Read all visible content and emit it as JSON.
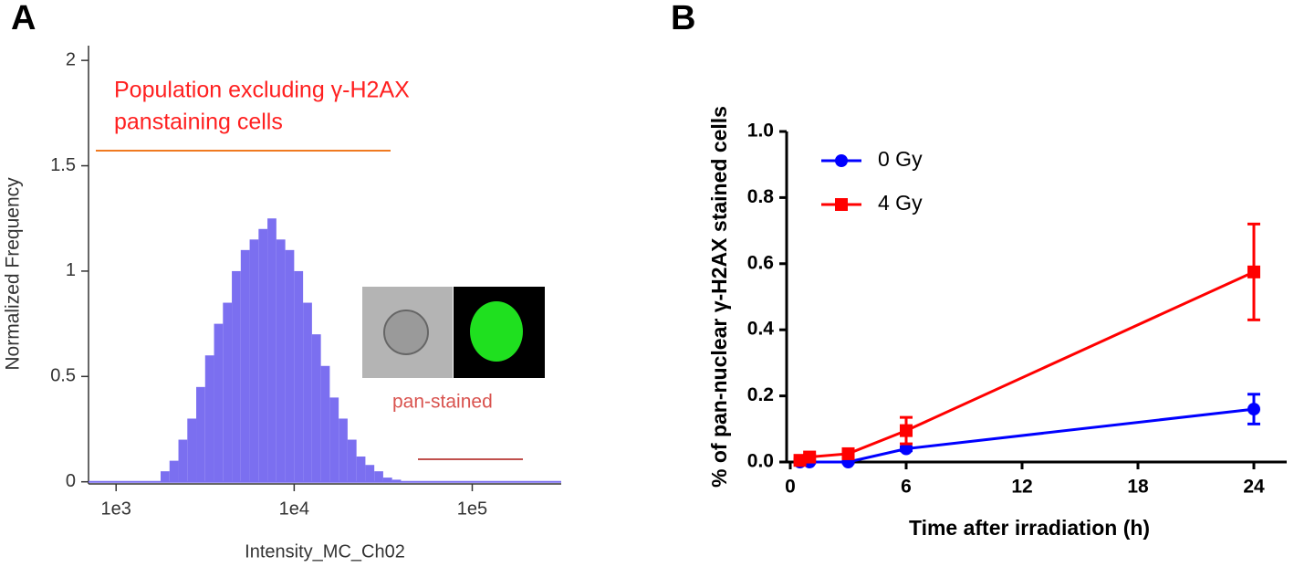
{
  "chart_data": [
    {
      "type": "histogram",
      "panel": "A",
      "x_label": "Intensity_MC_Ch02",
      "y_label": "Normalized Frequency",
      "annotations": [
        "Population excluding γ-H2AX",
        "panstaining cells",
        "pan-stained"
      ],
      "bins": [
        1778,
        1995,
        2239,
        2512,
        2818,
        3162,
        3548,
        3981,
        4467,
        5012,
        5623,
        6310,
        7079,
        7943,
        8913,
        10000,
        11220,
        12589,
        14125,
        15849,
        17783,
        19953,
        22387,
        25119,
        28184,
        31623,
        35481,
        39811
      ],
      "values": [
        0.05,
        0.1,
        0.2,
        0.3,
        0.45,
        0.6,
        0.75,
        0.85,
        1.0,
        1.1,
        1.15,
        1.2,
        1.25,
        1.15,
        1.1,
        1.0,
        0.85,
        0.7,
        0.55,
        0.4,
        0.3,
        0.2,
        0.12,
        0.08,
        0.05,
        0.02,
        0.01
      ],
      "color": "#7b6ff0",
      "log_x": true,
      "xlim": [
        700,
        316000
      ],
      "xticks": [
        {
          "value": 1000,
          "label": "1e3"
        },
        {
          "value": 10000,
          "label": "1e4"
        },
        {
          "value": 100000,
          "label": "1e5"
        }
      ],
      "ylim": [
        -0.01,
        2.07
      ],
      "yticks": [
        0,
        0.5,
        1,
        1.5,
        2
      ]
    },
    {
      "type": "line",
      "panel": "B",
      "x_label": "Time after irradiation (h)",
      "y_label": "% of pan-nuclear γ-H2AX stained cells",
      "x": [
        0.5,
        1,
        3,
        6,
        24
      ],
      "series": [
        {
          "name": "0 Gy",
          "color": "#0000ff",
          "marker": "circle",
          "values": [
            0,
            0,
            0,
            0.04,
            0.16
          ],
          "errors": [
            0.003,
            0.003,
            0.003,
            0.006,
            0.045
          ]
        },
        {
          "name": "4 Gy",
          "color": "#ff0000",
          "marker": "square",
          "values": [
            0.005,
            0.015,
            0.025,
            0.095,
            0.575
          ],
          "errors": [
            0.004,
            0.006,
            0.008,
            0.04,
            0.145
          ]
        }
      ],
      "legend": "upper left",
      "xlim": [
        0,
        25.7
      ],
      "xticks": [
        0,
        6,
        12,
        18,
        24
      ],
      "ylim": [
        0,
        1
      ],
      "yticks": [
        {
          "value": 0,
          "label": "0.0"
        },
        {
          "value": 0.2,
          "label": "0.2"
        },
        {
          "value": 0.4,
          "label": "0.4"
        },
        {
          "value": 0.6,
          "label": "0.6"
        },
        {
          "value": 0.8,
          "label": "0.8"
        },
        {
          "value": 1,
          "label": "1.0"
        }
      ]
    }
  ]
}
